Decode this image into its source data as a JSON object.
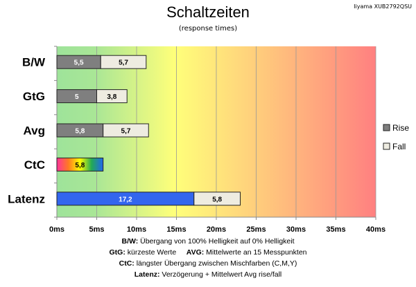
{
  "chart_data": {
    "type": "bar",
    "orientation": "horizontal",
    "stacked": true,
    "title": "Schaltzeiten",
    "subtitle": "(response times)",
    "model": "Iiyama XUB2792QSU",
    "categories": [
      "B/W",
      "GtG",
      "Avg",
      "CtC",
      "Latenz"
    ],
    "series": [
      {
        "name": "Rise",
        "color": "#7f7f7f",
        "values": [
          5.5,
          5,
          5.8,
          5.8,
          17.2
        ],
        "labels": [
          "5,5",
          "5",
          "5,8",
          "5,8",
          "17,2"
        ]
      },
      {
        "name": "Fall",
        "color": "#eeece1",
        "values": [
          5.7,
          3.8,
          5.7,
          null,
          5.8
        ],
        "labels": [
          "5,7",
          "3,8",
          "5,7",
          "",
          "5,8"
        ]
      }
    ],
    "special_colors": {
      "CtC": "rainbow gradient",
      "Latenz_rise": "#3366ee"
    },
    "xlim": [
      0,
      40
    ],
    "xticks": [
      "0ms",
      "5ms",
      "10ms",
      "15ms",
      "20ms",
      "25ms",
      "30ms",
      "35ms",
      "40ms"
    ],
    "grid": true,
    "legend": "right",
    "background": "green-yellow-red gradient"
  },
  "notes": [
    {
      "key": "B/W:",
      "text": "Übergang von 100% Helligkeit auf 0% Helligkeit"
    },
    {
      "key": "GtG:",
      "text": "kürzeste Werte"
    },
    {
      "key": "AVG:",
      "text": "Mittelwerte an 15 Messpunkten"
    },
    {
      "key": "CtC:",
      "text": "längster Übergang zwischen Mischfarben (C,M,Y)"
    },
    {
      "key": "Latenz:",
      "text": "Verzögerung + Mittelwert Avg rise/fall"
    }
  ]
}
